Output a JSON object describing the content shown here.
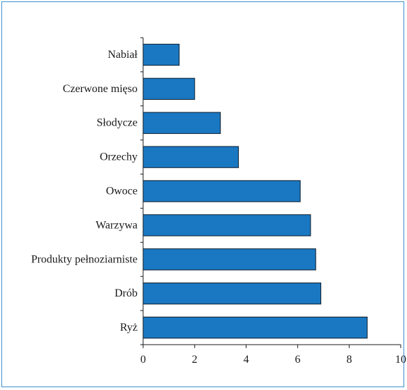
{
  "chart_data": {
    "type": "bar",
    "orientation": "horizontal",
    "categories": [
      "Nabiał",
      "Czerwone mięso",
      "Słodycze",
      "Orzechy",
      "Owoce",
      "Warzywa",
      "Produkty pełnoziarniste",
      "Drób",
      "Ryż"
    ],
    "values": [
      1.4,
      2.0,
      3.0,
      3.7,
      6.1,
      6.5,
      6.7,
      6.9,
      8.7
    ],
    "xlim": [
      0,
      10
    ],
    "xticks": [
      "0",
      "2",
      "4",
      "6",
      "8",
      "10"
    ],
    "title": "",
    "xlabel": "",
    "ylabel": "",
    "grid": false,
    "bar_color": "#1a78c2",
    "frame_color": "#3a8fd0"
  }
}
